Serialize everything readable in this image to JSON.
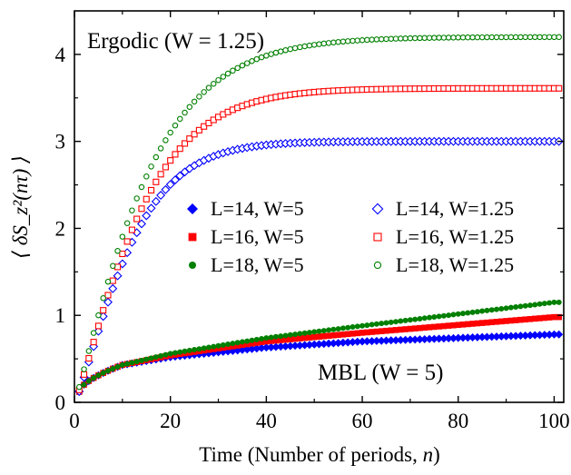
{
  "chart_data": {
    "type": "scatter",
    "xlabel_prefix": "Time (Number of periods, ",
    "xlabel_var": "n",
    "xlabel_suffix": ")",
    "ylabel": "⟨ δS_z²(nτ) ⟩",
    "xlim": [
      0,
      102
    ],
    "ylim": [
      0,
      4.5
    ],
    "xticks": [
      0,
      20,
      40,
      60,
      80,
      100
    ],
    "yticks": [
      0,
      1,
      2,
      3,
      4
    ],
    "annotations": {
      "ergodic": "Ergodic (W = 1.25)",
      "mbl": "MBL (W = 5)"
    },
    "legend_position": "center",
    "series": [
      {
        "name": "L=14, W=5",
        "color": "#0000ff",
        "marker": "diamond",
        "filled": true,
        "model": {
          "type": "mbl",
          "b": 0.068,
          "p": 0.5,
          "sat": 0.8,
          "k": 0.028
        }
      },
      {
        "name": "L=16, W=5",
        "color": "#ff0000",
        "marker": "square",
        "filled": true,
        "model": {
          "type": "mbl",
          "b": 0.068,
          "p": 0.5,
          "sat": 1.05,
          "k": 0.02
        }
      },
      {
        "name": "L=18, W=5",
        "color": "#008000",
        "marker": "circle",
        "filled": true,
        "model": {
          "type": "mbl",
          "b": 0.068,
          "p": 0.5,
          "sat": 1.3,
          "k": 0.015
        }
      },
      {
        "name": "L=14, W=1.25",
        "color": "#0000ff",
        "marker": "diamond",
        "filled": false,
        "model": {
          "type": "ergodic",
          "A": 3.0,
          "tau": 12.5,
          "q": 1.25
        }
      },
      {
        "name": "L=16, W=1.25",
        "color": "#ff0000",
        "marker": "square",
        "filled": false,
        "model": {
          "type": "ergodic",
          "A": 3.61,
          "tau": 14.5,
          "q": 1.2
        }
      },
      {
        "name": "L=18, W=1.25",
        "color": "#008000",
        "marker": "circle",
        "filled": false,
        "model": {
          "type": "ergodic",
          "A": 4.2,
          "tau": 15.5,
          "q": 1.15
        }
      }
    ],
    "x_points": {
      "start": 1,
      "end": 101,
      "step": 1
    },
    "y_at_x": {
      "L=14, W=1.25": {
        "10": 2.4,
        "20": 2.8,
        "40": 2.95,
        "60": 2.98,
        "100": 3.0
      },
      "L=16, W=1.25": {
        "10": 2.6,
        "20": 3.15,
        "40": 3.45,
        "60": 3.55,
        "100": 3.6
      },
      "L=18, W=1.25": {
        "10": 2.8,
        "20": 3.55,
        "40": 3.98,
        "60": 4.12,
        "100": 4.2
      },
      "L=14, W=5": {
        "10": 0.43,
        "20": 0.52,
        "40": 0.63,
        "60": 0.7,
        "100": 0.78
      },
      "L=16, W=5": {
        "10": 0.43,
        "20": 0.54,
        "40": 0.7,
        "60": 0.8,
        "100": 0.98
      },
      "L=18, W=5": {
        "10": 0.43,
        "20": 0.56,
        "40": 0.74,
        "60": 0.88,
        "100": 1.15
      }
    }
  }
}
